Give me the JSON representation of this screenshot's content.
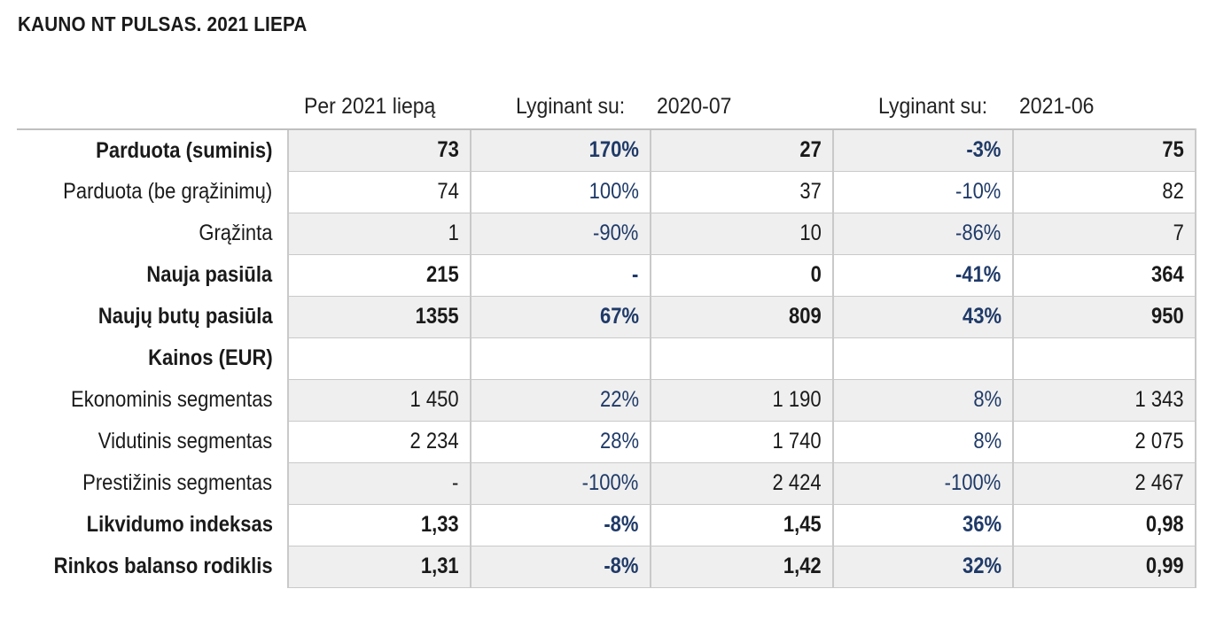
{
  "title": "KAUNO NT PULSAS. 2021 LIEPA",
  "headers": {
    "period": "Per 2021 liepą",
    "compare1_label": "Lyginant su:",
    "compare1_date": "2020-07",
    "compare2_label": "Lyginant su:",
    "compare2_date": "2021-06"
  },
  "rows": [
    {
      "label": "Parduota (suminis)",
      "bold": true,
      "shaded": true,
      "values": [
        "73",
        "170%",
        "27",
        "-3%",
        "75"
      ]
    },
    {
      "label": "Parduota (be grąžinimų)",
      "bold": false,
      "shaded": false,
      "values": [
        "74",
        "100%",
        "37",
        "-10%",
        "82"
      ]
    },
    {
      "label": "Grąžinta",
      "bold": false,
      "shaded": true,
      "values": [
        "1",
        "-90%",
        "10",
        "-86%",
        "7"
      ]
    },
    {
      "label": "Nauja pasiūla",
      "bold": true,
      "shaded": false,
      "values": [
        "215",
        "-",
        "0",
        "-41%",
        "364"
      ]
    },
    {
      "label": "Naujų butų pasiūla",
      "bold": true,
      "shaded": true,
      "values": [
        "1355",
        "67%",
        "809",
        "43%",
        "950"
      ]
    },
    {
      "label": "Kainos (EUR)",
      "bold": true,
      "shaded": false,
      "values": [
        "",
        "",
        "",
        "",
        ""
      ]
    },
    {
      "label": "Ekonominis segmentas",
      "bold": false,
      "shaded": true,
      "values": [
        "1 450",
        "22%",
        "1 190",
        "8%",
        "1 343"
      ]
    },
    {
      "label": "Vidutinis segmentas",
      "bold": false,
      "shaded": false,
      "values": [
        "2 234",
        "28%",
        "1 740",
        "8%",
        "2 075"
      ]
    },
    {
      "label": "Prestižinis segmentas",
      "bold": false,
      "shaded": true,
      "values": [
        "-",
        "-100%",
        "2 424",
        "-100%",
        "2 467"
      ]
    },
    {
      "label": "Likvidumo indeksas",
      "bold": true,
      "shaded": false,
      "values": [
        "1,33",
        "-8%",
        "1,45",
        "36%",
        "0,98"
      ]
    },
    {
      "label": "Rinkos balanso rodiklis",
      "bold": true,
      "shaded": true,
      "values": [
        "1,31",
        "-8%",
        "1,42",
        "32%",
        "0,99"
      ]
    }
  ]
}
